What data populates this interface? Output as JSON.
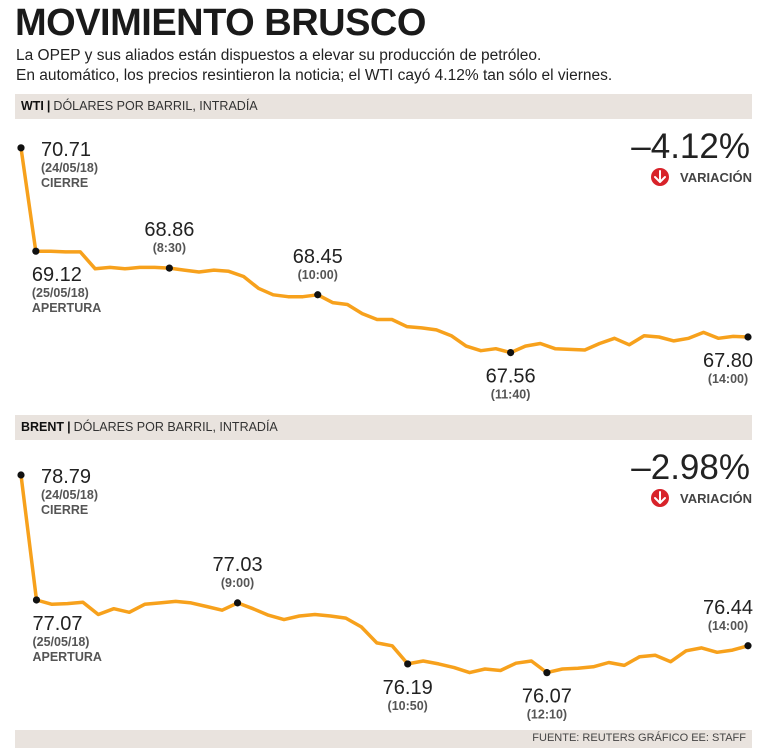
{
  "header": {
    "title": "MOVIMIENTO BRUSCO",
    "subtitle_line1": "La OPEP y sus aliados están dispuestos a elevar su producción de petróleo.",
    "subtitle_line2": "En automático, los precios resintieron la noticia; el WTI cayó 4.12% tan sólo el viernes."
  },
  "colors": {
    "line": "#f7a11c",
    "dot": "#111111",
    "badge": "#d8232a",
    "band": "#e9e3de"
  },
  "footer": {
    "source": "FUENTE: REUTERS GRÁFICO EE: STAFF"
  },
  "chart_data": [
    {
      "type": "line",
      "symbol": "WTI",
      "unit_label": "DÓLARES POR BARRIL, INTRADÍA",
      "variation": "-4.12%",
      "variation_label": "VARIACIÓN",
      "ylim": [
        67.4,
        70.8
      ],
      "values": [
        70.71,
        69.12,
        69.12,
        69.11,
        69.11,
        68.85,
        68.87,
        68.85,
        68.87,
        68.87,
        68.86,
        68.83,
        68.8,
        68.83,
        68.81,
        68.73,
        68.55,
        68.45,
        68.42,
        68.42,
        68.45,
        68.33,
        68.3,
        68.16,
        68.07,
        68.07,
        67.96,
        67.94,
        67.91,
        67.82,
        67.66,
        67.59,
        67.62,
        67.56,
        67.66,
        67.7,
        67.62,
        67.61,
        67.6,
        67.7,
        67.78,
        67.68,
        67.82,
        67.8,
        67.74,
        67.78,
        67.87,
        67.78,
        67.81,
        67.8
      ],
      "annotations": [
        {
          "index": 0,
          "value": "70.71",
          "date": "(24/05/18)",
          "label": "CIERRE"
        },
        {
          "index": 1,
          "value": "69.12",
          "date": "(25/05/18)",
          "label": "APERTURA"
        },
        {
          "index": 10,
          "value": "68.86",
          "time": "(8:30)"
        },
        {
          "index": 20,
          "value": "68.45",
          "time": "(10:00)"
        },
        {
          "index": 33,
          "value": "67.56",
          "time": "(11:40)"
        },
        {
          "index": 49,
          "value": "67.80",
          "time": "(14:00)"
        }
      ]
    },
    {
      "type": "line",
      "symbol": "BRENT",
      "unit_label": "DÓLARES POR BARRIL, INTRADÍA",
      "variation": "-2.98%",
      "variation_label": "VARIACIÓN",
      "ylim": [
        75.9,
        78.9
      ],
      "values": [
        78.79,
        77.07,
        77.01,
        77.02,
        77.04,
        76.87,
        76.95,
        76.9,
        77.01,
        77.03,
        77.05,
        77.03,
        76.98,
        76.93,
        77.03,
        76.95,
        76.86,
        76.8,
        76.85,
        76.87,
        76.85,
        76.82,
        76.7,
        76.48,
        76.44,
        76.19,
        76.23,
        76.19,
        76.14,
        76.07,
        76.12,
        76.1,
        76.2,
        76.23,
        76.07,
        76.12,
        76.13,
        76.15,
        76.21,
        76.17,
        76.29,
        76.31,
        76.22,
        76.37,
        76.41,
        76.35,
        76.38,
        76.44
      ],
      "annotations": [
        {
          "index": 0,
          "value": "78.79",
          "date": "(24/05/18)",
          "label": "CIERRE"
        },
        {
          "index": 1,
          "value": "77.07",
          "date": "(25/05/18)",
          "label": "APERTURA"
        },
        {
          "index": 14,
          "value": "77.03",
          "time": "(9:00)"
        },
        {
          "index": 25,
          "value": "76.19",
          "time": "(10:50)"
        },
        {
          "index": 34,
          "value": "76.07",
          "time": "(12:10)"
        },
        {
          "index": 47,
          "value": "76.44",
          "time": "(14:00)"
        }
      ]
    }
  ]
}
